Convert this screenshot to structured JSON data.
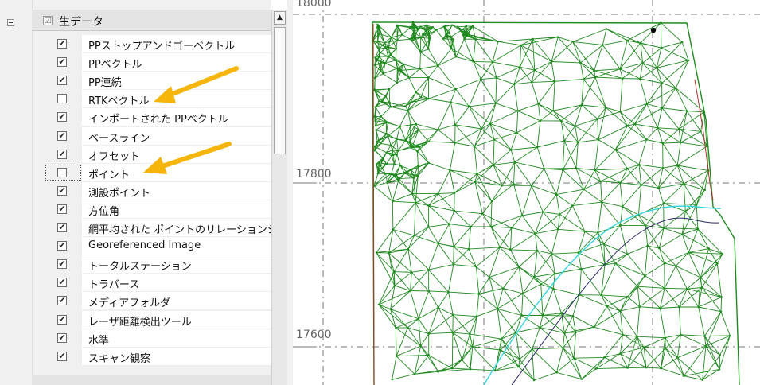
{
  "tree": {
    "header_label": "生データ",
    "header_checked": "☑",
    "items": [
      {
        "label": "PPストップアンドゴーベクトル",
        "checked": "✔"
      },
      {
        "label": "PPベクトル",
        "checked": "✔"
      },
      {
        "label": "PP連続",
        "checked": "✔"
      },
      {
        "label": "RTKベクトル",
        "checked": ""
      },
      {
        "label": "インポートされた PPベクトル",
        "checked": "✔"
      },
      {
        "label": "ベースライン",
        "checked": "✔"
      },
      {
        "label": "オフセット",
        "checked": "✔"
      },
      {
        "label": "ポイント",
        "checked": ""
      },
      {
        "label": "測設ポイント",
        "checked": "✔"
      },
      {
        "label": "方位角",
        "checked": "✔"
      },
      {
        "label": "網平均された ポイントのリレーションシ",
        "checked": "✔"
      },
      {
        "label": "Georeferenced Image",
        "checked": "✔"
      },
      {
        "label": "トータルステーション",
        "checked": "✔"
      },
      {
        "label": "トラバース",
        "checked": "✔"
      },
      {
        "label": "メディアフォルダ",
        "checked": "✔"
      },
      {
        "label": "レーザ距離検出ツール",
        "checked": "✔"
      },
      {
        "label": "水準",
        "checked": "✔"
      },
      {
        "label": "スキャン観察",
        "checked": "✔"
      }
    ]
  },
  "scrollbar": {
    "up_arrow": "▲"
  },
  "map": {
    "y_labels": [
      {
        "text": "17800"
      },
      {
        "text": "17600"
      }
    ],
    "top_label": "18000",
    "mesh_color": "#1f8a1f",
    "boundary_color": "#b03030",
    "cyan_line_color": "#33d6e0",
    "dark_line_color": "#2a2a6a"
  },
  "annotation": {
    "arrow_color": "#f5b50a"
  }
}
